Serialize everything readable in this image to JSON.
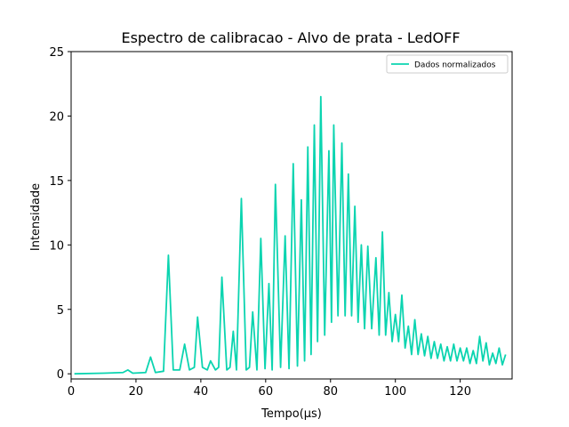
{
  "chart_data": {
    "type": "line",
    "title": "Espectro de calibracao - Alvo de prata - LedOFF",
    "x_label": "Tempo(μs)",
    "y_label": "Intensidade",
    "x": [
      1,
      10,
      16,
      17.5,
      19,
      23,
      24.5,
      26,
      28.5,
      30,
      31.5,
      33.5,
      35,
      36.5,
      38,
      39,
      40.5,
      42,
      43,
      44.5,
      45.5,
      46.5,
      48,
      49,
      50,
      51,
      52.5,
      54,
      55,
      56,
      57.3,
      58.5,
      59.8,
      61,
      62,
      63,
      64.6,
      66,
      67.2,
      68.5,
      69.8,
      71,
      72,
      73,
      74,
      75,
      76,
      77,
      78.2,
      79.5,
      80.3,
      81,
      82.3,
      83.5,
      84.5,
      85.5,
      86.5,
      87.5,
      88.5,
      89.5,
      90.5,
      91.5,
      92.7,
      94,
      95,
      96,
      97,
      98,
      99,
      100,
      101,
      102,
      103,
      104,
      105,
      106,
      107,
      108,
      109,
      110,
      111,
      112,
      113,
      114,
      115,
      116,
      117,
      118,
      119,
      120,
      121,
      122,
      123,
      124,
      125,
      126,
      127,
      128,
      129,
      130,
      131,
      132,
      133,
      134
    ],
    "series": [
      {
        "name": "Dados normalizados",
        "color": "#0bd4b0",
        "values": [
          0,
          0.05,
          0.1,
          0.3,
          0.05,
          0.1,
          1.3,
          0.1,
          0.2,
          9.2,
          0.3,
          0.3,
          2.3,
          0.3,
          0.5,
          4.4,
          0.5,
          0.3,
          1.0,
          0.3,
          0.5,
          7.5,
          0.3,
          0.5,
          3.3,
          0.3,
          13.6,
          0.3,
          0.5,
          4.8,
          0.3,
          10.5,
          0.4,
          7.0,
          0.3,
          14.7,
          0.5,
          10.7,
          0.4,
          16.3,
          0.6,
          13.5,
          1.0,
          17.6,
          1.5,
          19.3,
          2.5,
          21.5,
          3.0,
          17.3,
          4.0,
          19.3,
          4.5,
          17.9,
          4.5,
          15.5,
          4.5,
          13.0,
          4.0,
          10.0,
          3.5,
          9.9,
          3.5,
          9.0,
          3.0,
          11.0,
          3.0,
          6.3,
          2.5,
          4.6,
          2.5,
          6.1,
          2.0,
          3.7,
          1.5,
          4.2,
          1.5,
          3.1,
          1.4,
          2.9,
          1.2,
          2.5,
          1.2,
          2.3,
          1.0,
          2.1,
          1.0,
          2.3,
          1.0,
          2.0,
          1.0,
          2.0,
          0.8,
          1.8,
          0.8,
          2.9,
          1.0,
          2.4,
          0.7,
          1.6,
          0.8,
          2.0,
          0.7,
          1.5
        ]
      }
    ],
    "xlim": [
      0,
      136
    ],
    "ylim": [
      -0.4,
      25
    ],
    "xticks": [
      0,
      20,
      40,
      60,
      80,
      100,
      120
    ],
    "yticks": [
      0,
      5,
      10,
      15,
      20,
      25
    ],
    "legend": "upper right"
  }
}
